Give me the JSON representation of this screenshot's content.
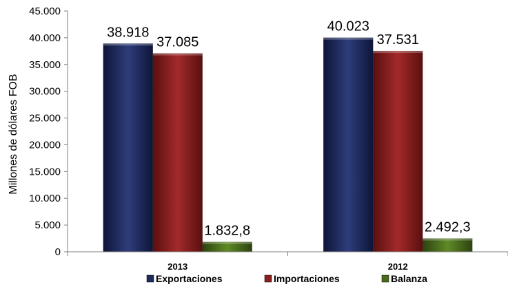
{
  "chart_data": {
    "type": "bar",
    "categories": [
      "2013",
      "2012"
    ],
    "series": [
      {
        "name": "Exportaciones",
        "values": [
          38918,
          40023
        ],
        "labels": [
          "38.918",
          "40.023"
        ],
        "color": "#1F2A5C"
      },
      {
        "name": "Importaciones",
        "values": [
          37085,
          37531
        ],
        "labels": [
          "37.085",
          "37.531"
        ],
        "color": "#8B1E1E"
      },
      {
        "name": "Balanza",
        "values": [
          1832.8,
          2492.3
        ],
        "labels": [
          "1.832,8",
          "2.492,3"
        ],
        "color": "#4A6B1C"
      }
    ],
    "ylabel": "Millones de dólares FOB",
    "ylim": [
      0,
      45000
    ],
    "yticks": [
      0,
      5000,
      10000,
      15000,
      20000,
      25000,
      30000,
      35000,
      40000,
      45000
    ],
    "ytick_labels": [
      "0",
      "5.000",
      "10.000",
      "15.000",
      "20.000",
      "25.000",
      "30.000",
      "35.000",
      "40.000",
      "45.000"
    ],
    "grid": false,
    "legend_position": "bottom"
  }
}
